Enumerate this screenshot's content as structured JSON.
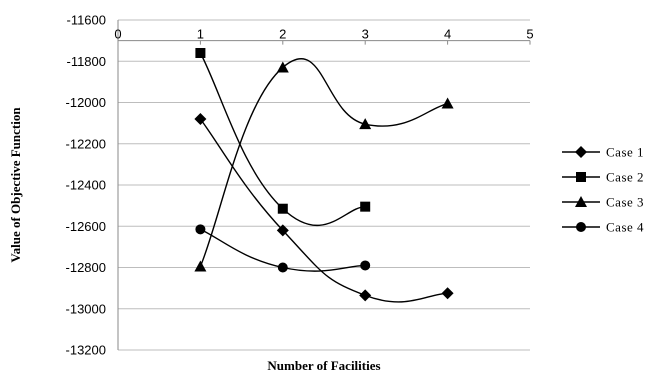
{
  "chart_data": {
    "type": "scatter",
    "xlabel": "Number of Facilities",
    "ylabel": "Value of Objective Function",
    "xlim": [
      0,
      5
    ],
    "ylim": [
      -13200,
      -11600
    ],
    "x_ticks": [
      0,
      1,
      2,
      3,
      4,
      5
    ],
    "y_ticks": [
      -11600,
      -11800,
      -12000,
      -12200,
      -12400,
      -12600,
      -12800,
      -13000,
      -13200
    ],
    "grid": "horizontal",
    "legend_position": "right",
    "smooth_lines": true,
    "series": [
      {
        "name": "Case 1",
        "marker": "diamond",
        "x": [
          1,
          2,
          3,
          4
        ],
        "y": [
          -12080,
          -12620,
          -12935,
          -12925
        ]
      },
      {
        "name": "Case 2",
        "marker": "square",
        "x": [
          1,
          2,
          3
        ],
        "y": [
          -11760,
          -12515,
          -12505
        ]
      },
      {
        "name": "Case 3",
        "marker": "triangle",
        "x": [
          1,
          2,
          3,
          4
        ],
        "y": [
          -12795,
          -11830,
          -12105,
          -12005
        ]
      },
      {
        "name": "Case 4",
        "marker": "circle",
        "x": [
          1,
          2,
          3
        ],
        "y": [
          -12615,
          -12800,
          -12790
        ]
      }
    ]
  }
}
